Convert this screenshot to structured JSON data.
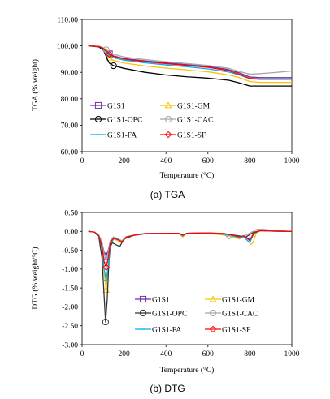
{
  "figure": {
    "caption_a": "(a)  TGA",
    "caption_b": "(b) DTG"
  },
  "chart_data": [
    {
      "type": "line",
      "xlabel": "Temperature (°C)",
      "ylabel": "TGA (% weight)",
      "xlim": [
        0,
        1000
      ],
      "ylim": [
        60,
        110
      ],
      "xticks": [
        "0",
        "200",
        "400",
        "600",
        "800",
        "1000"
      ],
      "yticks": [
        "60.00",
        "70.00",
        "80.00",
        "90.00",
        "100.00",
        "110.00"
      ],
      "xtick_values": [
        0,
        200,
        400,
        600,
        800,
        1000
      ],
      "ytick_values": [
        60,
        70,
        80,
        90,
        100,
        110
      ],
      "grid": false,
      "legend_position": "lower-left",
      "series": [
        {
          "name": "G1S1",
          "color": "#7030a0",
          "marker": "square",
          "x": [
            30,
            80,
            100,
            120,
            130,
            150,
            200,
            300,
            400,
            500,
            600,
            700,
            750,
            800,
            850,
            900,
            1000
          ],
          "y": [
            100,
            99.8,
            99.2,
            98.0,
            97.0,
            96.2,
            95.2,
            94.3,
            93.6,
            92.9,
            92.2,
            91.0,
            89.8,
            88.2,
            88.0,
            88.0,
            88.0
          ]
        },
        {
          "name": "G1S1-GM",
          "color": "#ffc000",
          "marker": "triangle",
          "x": [
            30,
            80,
            100,
            120,
            130,
            150,
            200,
            300,
            400,
            500,
            600,
            700,
            750,
            800,
            850,
            900,
            1000
          ],
          "y": [
            100,
            99.7,
            98.8,
            96.8,
            95.5,
            94.5,
            93.5,
            92.4,
            91.6,
            90.9,
            90.2,
            89.0,
            88.0,
            86.5,
            86.2,
            86.2,
            86.2
          ]
        },
        {
          "name": "G1S1-OPC",
          "color": "#000000",
          "marker": "circle",
          "x": [
            30,
            80,
            100,
            110,
            120,
            130,
            150,
            200,
            300,
            400,
            500,
            600,
            700,
            750,
            800,
            850,
            900,
            1000
          ],
          "y": [
            100,
            99.6,
            98.5,
            97.0,
            95.0,
            93.5,
            92.5,
            91.5,
            90.0,
            89.0,
            88.3,
            87.8,
            87.0,
            86.0,
            84.8,
            84.8,
            84.8,
            84.8
          ]
        },
        {
          "name": "G1S1-CAC",
          "color": "#a6a6a6",
          "marker": "circle",
          "x": [
            30,
            80,
            100,
            120,
            130,
            150,
            200,
            300,
            400,
            500,
            600,
            700,
            750,
            800,
            850,
            900,
            1000
          ],
          "y": [
            100,
            99.8,
            99.3,
            98.3,
            97.5,
            96.8,
            95.8,
            94.8,
            94.0,
            93.3,
            92.6,
            91.5,
            90.3,
            89.3,
            89.5,
            89.8,
            90.5
          ]
        },
        {
          "name": "G1S1-FA",
          "color": "#00b0f0",
          "marker": "dash",
          "x": [
            30,
            80,
            100,
            120,
            130,
            150,
            200,
            300,
            400,
            500,
            600,
            700,
            750,
            800,
            850,
            900,
            1000
          ],
          "y": [
            100,
            99.8,
            99.0,
            97.5,
            96.3,
            95.5,
            94.6,
            93.6,
            92.8,
            92.1,
            91.3,
            90.1,
            89.0,
            87.6,
            87.3,
            87.3,
            87.3
          ]
        },
        {
          "name": "G1S1-SF",
          "color": "#ff0000",
          "marker": "diamond",
          "x": [
            30,
            80,
            100,
            120,
            130,
            150,
            200,
            300,
            400,
            500,
            600,
            700,
            750,
            800,
            850,
            900,
            1000
          ],
          "y": [
            100,
            99.8,
            99.1,
            97.8,
            96.8,
            96.0,
            95.0,
            94.0,
            93.3,
            92.6,
            91.9,
            90.6,
            89.3,
            87.7,
            87.5,
            87.5,
            87.5
          ]
        }
      ]
    },
    {
      "type": "line",
      "xlabel": "Temperature (°C)",
      "ylabel": "DTG (% weight/°C)",
      "xlim": [
        0,
        1000
      ],
      "ylim": [
        -3,
        0.5
      ],
      "xticks": [
        "0",
        "200",
        "400",
        "600",
        "800",
        "1000"
      ],
      "yticks": [
        "-3.00",
        "-2.50",
        "-2.00",
        "-1.50",
        "-1.00",
        "-0.50",
        "0.00",
        "0.50"
      ],
      "xtick_values": [
        0,
        200,
        400,
        600,
        800,
        1000
      ],
      "ytick_values": [
        -3,
        -2.5,
        -2,
        -1.5,
        -1,
        -0.5,
        0,
        0.5
      ],
      "grid": false,
      "legend_position": "lower-center",
      "series": [
        {
          "name": "G1S1",
          "color": "#7030a0",
          "marker": "square",
          "x": [
            30,
            60,
            80,
            95,
            105,
            115,
            125,
            135,
            150,
            170,
            190,
            210,
            250,
            300,
            400,
            460,
            480,
            500,
            600,
            680,
            720,
            750,
            770,
            790,
            800,
            820,
            850,
            900,
            1000
          ],
          "y": [
            0,
            -0.02,
            -0.1,
            -0.3,
            -0.55,
            -0.65,
            -0.5,
            -0.25,
            -0.15,
            -0.2,
            -0.25,
            -0.15,
            -0.1,
            -0.06,
            -0.05,
            -0.05,
            -0.12,
            -0.05,
            -0.04,
            -0.06,
            -0.12,
            -0.15,
            -0.12,
            -0.2,
            -0.25,
            -0.05,
            0.02,
            0.01,
            0
          ]
        },
        {
          "name": "G1S1-GM",
          "color": "#ffc000",
          "marker": "triangle",
          "x": [
            30,
            60,
            80,
            95,
            105,
            115,
            125,
            135,
            150,
            170,
            190,
            210,
            250,
            300,
            400,
            460,
            480,
            500,
            600,
            680,
            720,
            750,
            770,
            790,
            805,
            815,
            830,
            850,
            900,
            1000
          ],
          "y": [
            0,
            -0.02,
            -0.15,
            -0.5,
            -1.1,
            -1.55,
            -1.0,
            -0.4,
            -0.2,
            -0.25,
            -0.3,
            -0.15,
            -0.1,
            -0.06,
            -0.05,
            -0.05,
            -0.15,
            -0.05,
            -0.05,
            -0.1,
            -0.15,
            -0.2,
            -0.15,
            -0.25,
            -0.35,
            -0.3,
            -0.05,
            0.02,
            0.01,
            0
          ]
        },
        {
          "name": "G1S1-OPC",
          "color": "#333333",
          "marker": "circle",
          "x": [
            30,
            60,
            80,
            95,
            105,
            112,
            120,
            128,
            135,
            145,
            160,
            180,
            200,
            250,
            300,
            400,
            460,
            480,
            500,
            600,
            700,
            750,
            780,
            795,
            820,
            850,
            900,
            1000
          ],
          "y": [
            0,
            -0.02,
            -0.15,
            -0.7,
            -1.7,
            -2.4,
            -1.8,
            -0.8,
            -0.4,
            -0.3,
            -0.35,
            -0.4,
            -0.2,
            -0.1,
            -0.06,
            -0.05,
            -0.05,
            -0.1,
            -0.05,
            -0.04,
            -0.08,
            -0.12,
            -0.15,
            -0.1,
            -0.02,
            0.02,
            0.01,
            0
          ]
        },
        {
          "name": "G1S1-CAC",
          "color": "#a6a6a6",
          "marker": "circle",
          "x": [
            30,
            60,
            80,
            95,
            105,
            115,
            125,
            135,
            150,
            170,
            190,
            210,
            250,
            300,
            400,
            460,
            480,
            500,
            600,
            650,
            680,
            700,
            720,
            750,
            780,
            800,
            830,
            860,
            900,
            1000
          ],
          "y": [
            0,
            -0.02,
            -0.1,
            -0.3,
            -0.6,
            -0.75,
            -0.55,
            -0.25,
            -0.15,
            -0.2,
            -0.25,
            -0.15,
            -0.1,
            -0.06,
            -0.05,
            -0.05,
            -0.1,
            -0.05,
            -0.04,
            -0.05,
            -0.08,
            -0.2,
            -0.12,
            -0.15,
            -0.1,
            -0.05,
            0.05,
            0.06,
            0.03,
            0
          ]
        },
        {
          "name": "G1S1-FA",
          "color": "#00b0f0",
          "marker": "dash",
          "x": [
            30,
            60,
            80,
            95,
            105,
            115,
            125,
            135,
            150,
            170,
            190,
            210,
            250,
            300,
            400,
            460,
            480,
            500,
            600,
            680,
            720,
            750,
            770,
            790,
            800,
            820,
            850,
            900,
            1000
          ],
          "y": [
            0,
            -0.02,
            -0.12,
            -0.45,
            -1.0,
            -1.3,
            -0.9,
            -0.35,
            -0.2,
            -0.2,
            -0.28,
            -0.15,
            -0.1,
            -0.06,
            -0.05,
            -0.05,
            -0.12,
            -0.05,
            -0.04,
            -0.08,
            -0.12,
            -0.18,
            -0.14,
            -0.25,
            -0.3,
            -0.05,
            0.02,
            0.01,
            0
          ]
        },
        {
          "name": "G1S1-SF",
          "color": "#ff0000",
          "marker": "diamond",
          "x": [
            30,
            60,
            80,
            95,
            105,
            115,
            125,
            135,
            150,
            170,
            190,
            210,
            250,
            300,
            400,
            460,
            480,
            500,
            600,
            680,
            720,
            750,
            770,
            790,
            800,
            820,
            850,
            900,
            1000
          ],
          "y": [
            0,
            -0.02,
            -0.12,
            -0.4,
            -0.8,
            -0.95,
            -0.7,
            -0.3,
            -0.18,
            -0.22,
            -0.28,
            -0.15,
            -0.1,
            -0.06,
            -0.05,
            -0.05,
            -0.1,
            -0.05,
            -0.04,
            -0.06,
            -0.1,
            -0.14,
            -0.12,
            -0.18,
            -0.22,
            -0.04,
            0.02,
            0.01,
            0
          ]
        }
      ]
    }
  ]
}
